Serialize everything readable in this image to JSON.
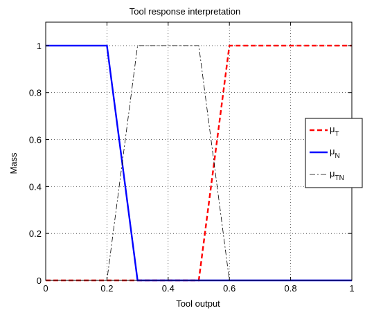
{
  "chart_data": {
    "type": "line",
    "title": "Tool  response interpretation",
    "xlabel": "Tool output",
    "ylabel": "Mass",
    "xlim": [
      0,
      1
    ],
    "ylim": [
      0,
      1.1
    ],
    "xticks": [
      0,
      0.2,
      0.4,
      0.6,
      0.8,
      1
    ],
    "xtick_labels": [
      "0",
      "0.2",
      "0.4",
      "0.6",
      "0.8",
      "1"
    ],
    "yticks": [
      0,
      0.2,
      0.4,
      0.6,
      0.8,
      1
    ],
    "ytick_labels": [
      "0",
      "0.2",
      "0.4",
      "0.6",
      "0.8",
      "1"
    ],
    "grid": true,
    "legend_position": "right",
    "series": [
      {
        "name": "μ",
        "subscript": "T",
        "color": "#ff0000",
        "style": "dashed",
        "x": [
          0,
          0.5,
          0.6,
          1
        ],
        "y": [
          0,
          0,
          1,
          1
        ]
      },
      {
        "name": "μ",
        "subscript": "N",
        "color": "#0000ff",
        "style": "solid",
        "x": [
          0,
          0.2,
          0.3,
          1
        ],
        "y": [
          1,
          1,
          0,
          0
        ]
      },
      {
        "name": "μ",
        "subscript": "TN",
        "color": "#000000",
        "style": "dashdot",
        "x": [
          0,
          0.2,
          0.3,
          0.5,
          0.6,
          1
        ],
        "y": [
          0,
          0,
          1,
          1,
          0,
          0
        ]
      }
    ]
  }
}
